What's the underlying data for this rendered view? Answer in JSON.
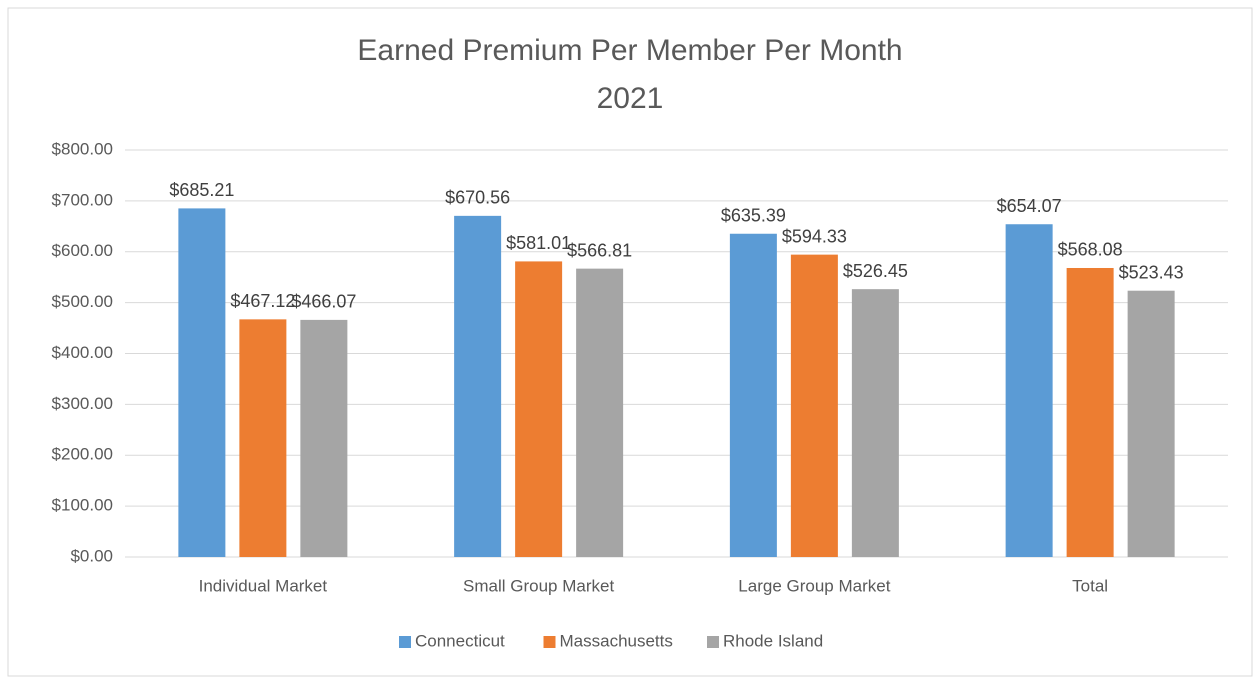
{
  "chart_data": {
    "type": "bar",
    "title": "Earned Premium Per Member Per Month",
    "subtitle": "2021",
    "categories": [
      "Individual Market",
      "Small Group Market",
      "Large Group Market",
      "Total"
    ],
    "series": [
      {
        "name": "Connecticut",
        "color": "#5b9bd5",
        "values": [
          685.21,
          670.56,
          635.39,
          654.07
        ],
        "value_labels": [
          "$685.21",
          "$670.56",
          "$635.39",
          "$654.07"
        ]
      },
      {
        "name": "Massachusetts",
        "color": "#ed7d31",
        "values": [
          467.12,
          581.01,
          594.33,
          568.08
        ],
        "value_labels": [
          "$467.12",
          "$581.01",
          "$594.33",
          "$568.08"
        ]
      },
      {
        "name": "Rhode Island",
        "color": "#a5a5a5",
        "values": [
          466.07,
          566.81,
          526.45,
          523.43
        ],
        "value_labels": [
          "$466.07",
          "$566.81",
          "$526.45",
          "$523.43"
        ]
      }
    ],
    "ylim": [
      0,
      800
    ],
    "yticks": [
      {
        "value": 0,
        "label": "$0.00"
      },
      {
        "value": 100,
        "label": "$100.00"
      },
      {
        "value": 200,
        "label": "$200.00"
      },
      {
        "value": 300,
        "label": "$300.00"
      },
      {
        "value": 400,
        "label": "$400.00"
      },
      {
        "value": 500,
        "label": "$500.00"
      },
      {
        "value": 600,
        "label": "$600.00"
      },
      {
        "value": 700,
        "label": "$700.00"
      },
      {
        "value": 800,
        "label": "$800.00"
      }
    ],
    "grid": true,
    "legend": "bottom"
  }
}
